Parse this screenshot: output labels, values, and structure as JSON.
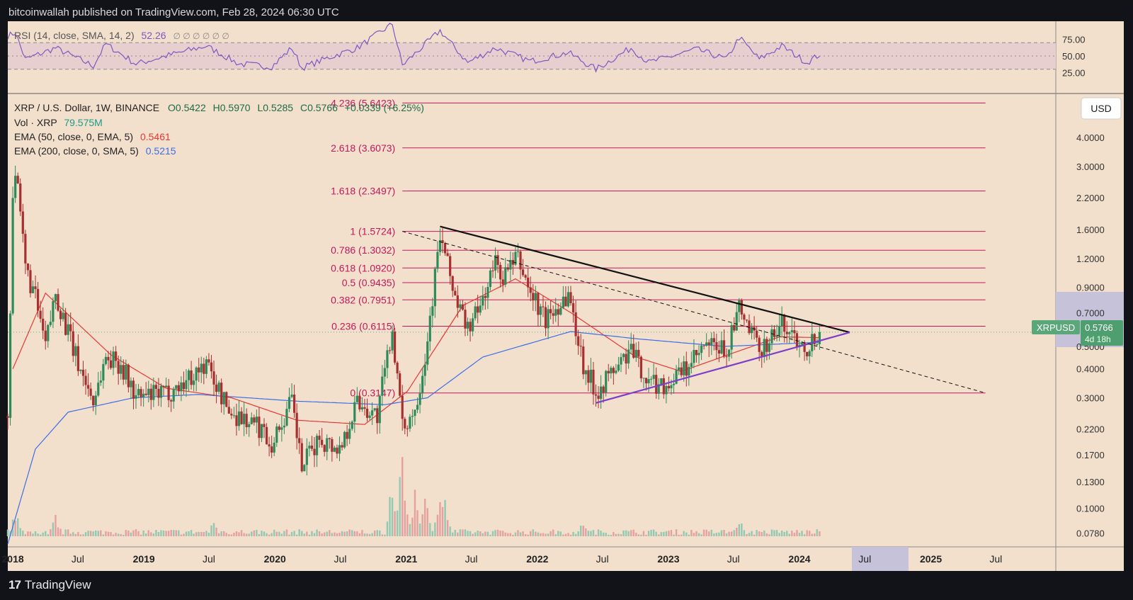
{
  "header": {
    "published": "bitcoinwallah published on TradingView.com, Feb 28, 2024 06:30 UTC"
  },
  "footer": {
    "brand": "TradingView"
  },
  "rsi_panel": {
    "legend_name": "RSI (14, close, SMA, 14, 2)",
    "legend_value": "52.26",
    "legend_markers": "∅ ∅ ∅ ∅ ∅ ∅",
    "ticks": [
      "75.00",
      "50.00",
      "25.00"
    ]
  },
  "price_panel": {
    "symbol_line": "XRP / U.S. Dollar, 1W, BINANCE",
    "ohlc": {
      "o": "O0.5422",
      "h": "H0.5970",
      "l": "L0.5285",
      "c": "C0.5766",
      "chg": "+0.0339 (+6.25%)"
    },
    "vol_label": "Vol · XRP",
    "vol_value": "79.575M",
    "ema50_label": "EMA (50, close, 0, EMA, 5)",
    "ema50_value": "0.5461",
    "ema200_label": "EMA (200, close, 0, SMA, 5)",
    "ema200_value": "0.5215",
    "currency": "USD",
    "ticker_tag": "XRPUSD",
    "price_tag": "0.5766",
    "countdown": "4d 18h"
  },
  "colors": {
    "background": "#f2e0cd",
    "up": "#2f8a5a",
    "down": "#a82f2f",
    "fib_line": "#c2185b",
    "ema50": "#e53935",
    "ema200": "#3b6ee8",
    "support": "#7b3fc8",
    "rsi_line": "#7e57c2",
    "rsi_band": "#e8cfcf"
  },
  "chart_data": {
    "type": "candlestick",
    "scale": "log",
    "ylim": [
      0.068,
      6.2
    ],
    "x_range": [
      "2017-12-18",
      "2025-12-15"
    ],
    "price_ticks": [
      "4.0000",
      "3.0000",
      "2.2000",
      "1.6000",
      "1.2000",
      "0.9000",
      "0.7000",
      "0.5000",
      "0.4000",
      "0.3000",
      "0.2200",
      "0.1700",
      "0.1300",
      "0.1000",
      "0.0780"
    ],
    "x_ticks": [
      "2018",
      "Jul",
      "2019",
      "Jul",
      "2020",
      "Jul",
      "2021",
      "Jul",
      "2022",
      "Jul",
      "2023",
      "Jul",
      "2024",
      "Jul",
      "2025",
      "Jul"
    ],
    "fib_levels": [
      {
        "label": "4.236 (5.6423)",
        "value": 5.6423
      },
      {
        "label": "2.618 (3.6073)",
        "value": 3.6073
      },
      {
        "label": "1.618 (2.3497)",
        "value": 2.3497
      },
      {
        "label": "1 (1.5724)",
        "value": 1.5724
      },
      {
        "label": "0.786 (1.3032)",
        "value": 1.3032
      },
      {
        "label": "0.618 (1.0920)",
        "value": 1.092
      },
      {
        "label": "0.5 (0.9435)",
        "value": 0.9435
      },
      {
        "label": "0.382 (0.7951)",
        "value": 0.7951
      },
      {
        "label": "0.236 (0.6115)",
        "value": 0.6115
      },
      {
        "label": "0 (0.3147)",
        "value": 0.3147
      }
    ],
    "trendlines": [
      {
        "name": "resistance",
        "style": "solid",
        "from": [
          "2021-04-05",
          1.65
        ],
        "to": [
          "2024-05-20",
          0.575
        ]
      },
      {
        "name": "support",
        "style": "solid",
        "from": [
          "2022-06-13",
          0.285
        ],
        "to": [
          "2024-05-20",
          0.575
        ]
      },
      {
        "name": "fib-diagonal",
        "style": "dashed",
        "from": [
          "2020-12-21",
          1.5724
        ],
        "to": [
          "2025-06-02",
          0.3147
        ]
      }
    ],
    "price_anchors": [
      [
        "2017-12-18",
        0.25
      ],
      [
        "2018-01-01",
        2.3
      ],
      [
        "2018-01-08",
        2.9
      ],
      [
        "2018-02-05",
        1.1
      ],
      [
        "2018-03-05",
        0.8
      ],
      [
        "2018-04-02",
        0.5
      ],
      [
        "2018-04-30",
        0.85
      ],
      [
        "2018-06-25",
        0.45
      ],
      [
        "2018-08-13",
        0.29
      ],
      [
        "2018-09-17",
        0.45
      ],
      [
        "2018-10-29",
        0.42
      ],
      [
        "2018-12-10",
        0.3
      ],
      [
        "2019-02-25",
        0.31
      ],
      [
        "2019-04-01",
        0.33
      ],
      [
        "2019-06-24",
        0.42
      ],
      [
        "2019-08-26",
        0.26
      ],
      [
        "2019-09-23",
        0.25
      ],
      [
        "2019-11-25",
        0.22
      ],
      [
        "2019-12-23",
        0.19
      ],
      [
        "2020-02-17",
        0.29
      ],
      [
        "2020-03-16",
        0.15
      ],
      [
        "2020-05-04",
        0.2
      ],
      [
        "2020-06-29",
        0.18
      ],
      [
        "2020-08-17",
        0.29
      ],
      [
        "2020-10-12",
        0.25
      ],
      [
        "2020-11-23",
        0.6
      ],
      [
        "2020-12-21",
        0.22
      ],
      [
        "2021-01-25",
        0.27
      ],
      [
        "2021-02-22",
        0.45
      ],
      [
        "2021-04-05",
        1.5
      ],
      [
        "2021-05-24",
        0.75
      ],
      [
        "2021-06-21",
        0.6
      ],
      [
        "2021-07-19",
        0.7
      ],
      [
        "2021-09-06",
        1.15
      ],
      [
        "2021-09-27",
        1.0
      ],
      [
        "2021-11-08",
        1.2
      ],
      [
        "2021-12-13",
        0.85
      ],
      [
        "2022-01-24",
        0.65
      ],
      [
        "2022-03-28",
        0.85
      ],
      [
        "2022-05-09",
        0.42
      ],
      [
        "2022-06-13",
        0.32
      ],
      [
        "2022-09-19",
        0.48
      ],
      [
        "2022-11-07",
        0.35
      ],
      [
        "2022-12-26",
        0.34
      ],
      [
        "2023-02-20",
        0.4
      ],
      [
        "2023-04-17",
        0.5
      ],
      [
        "2023-06-12",
        0.48
      ],
      [
        "2023-07-17",
        0.72
      ],
      [
        "2023-09-11",
        0.48
      ],
      [
        "2023-11-13",
        0.62
      ],
      [
        "2024-01-22",
        0.5
      ],
      [
        "2024-02-26",
        0.5766
      ]
    ],
    "ema50_anchors": [
      [
        "2018-01-01",
        0.4
      ],
      [
        "2018-04-02",
        0.85
      ],
      [
        "2018-10-01",
        0.46
      ],
      [
        "2019-03-04",
        0.33
      ],
      [
        "2019-09-02",
        0.3
      ],
      [
        "2020-03-02",
        0.24
      ],
      [
        "2020-09-07",
        0.23
      ],
      [
        "2021-01-04",
        0.32
      ],
      [
        "2021-06-07",
        0.75
      ],
      [
        "2021-11-01",
        0.98
      ],
      [
        "2022-04-04",
        0.7
      ],
      [
        "2022-10-03",
        0.45
      ],
      [
        "2023-02-06",
        0.39
      ],
      [
        "2023-07-03",
        0.47
      ],
      [
        "2023-11-06",
        0.55
      ],
      [
        "2024-02-26",
        0.5461
      ]
    ],
    "ema200_anchors": [
      [
        "2017-12-18",
        0.07
      ],
      [
        "2018-03-05",
        0.18
      ],
      [
        "2018-06-04",
        0.26
      ],
      [
        "2018-12-03",
        0.3
      ],
      [
        "2019-06-03",
        0.31
      ],
      [
        "2020-03-02",
        0.29
      ],
      [
        "2020-11-02",
        0.28
      ],
      [
        "2021-03-01",
        0.3
      ],
      [
        "2021-08-02",
        0.45
      ],
      [
        "2022-04-04",
        0.58
      ],
      [
        "2022-10-03",
        0.54
      ],
      [
        "2023-06-05",
        0.5
      ],
      [
        "2024-02-26",
        0.5215
      ]
    ],
    "rsi_anchors": [
      [
        "2017-12-18",
        80
      ],
      [
        "2018-01-08",
        85
      ],
      [
        "2018-02-05",
        45
      ],
      [
        "2018-04-30",
        62
      ],
      [
        "2018-08-13",
        35
      ],
      [
        "2018-09-17",
        68
      ],
      [
        "2018-12-10",
        38
      ],
      [
        "2019-03-04",
        50
      ],
      [
        "2019-06-24",
        65
      ],
      [
        "2019-09-23",
        38
      ],
      [
        "2019-12-23",
        34
      ],
      [
        "2020-02-17",
        62
      ],
      [
        "2020-03-16",
        32
      ],
      [
        "2020-06-01",
        48
      ],
      [
        "2020-08-17",
        62
      ],
      [
        "2020-11-23",
        98
      ],
      [
        "2020-12-21",
        36
      ],
      [
        "2021-04-05",
        88
      ],
      [
        "2021-06-21",
        40
      ],
      [
        "2021-09-06",
        62
      ],
      [
        "2021-12-13",
        42
      ],
      [
        "2022-03-28",
        55
      ],
      [
        "2022-06-13",
        30
      ],
      [
        "2022-09-19",
        62
      ],
      [
        "2022-11-07",
        40
      ],
      [
        "2023-03-20",
        60
      ],
      [
        "2023-06-12",
        45
      ],
      [
        "2023-07-17",
        78
      ],
      [
        "2023-09-11",
        45
      ],
      [
        "2023-11-13",
        65
      ],
      [
        "2024-01-22",
        40
      ],
      [
        "2024-02-26",
        52.26
      ]
    ],
    "rsi_levels": [
      70,
      50,
      30
    ],
    "volume_peaks": [
      [
        "2020-11-23",
        0.75
      ],
      [
        "2020-12-21",
        1.0
      ],
      [
        "2021-01-25",
        0.55
      ],
      [
        "2021-02-22",
        0.5
      ],
      [
        "2021-04-05",
        0.7
      ],
      [
        "2021-04-19",
        0.45
      ],
      [
        "2018-01-08",
        0.3
      ],
      [
        "2018-04-30",
        0.25
      ],
      [
        "2023-07-17",
        0.25
      ],
      [
        "2022-05-09",
        0.2
      ],
      [
        "2019-07-15",
        0.18
      ]
    ]
  }
}
